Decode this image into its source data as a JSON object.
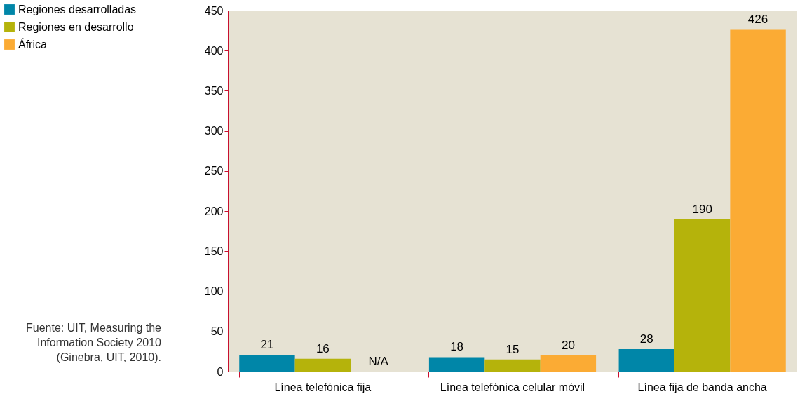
{
  "chart_data": {
    "type": "bar",
    "categories": [
      "Línea telefónica fija",
      "Línea telefónica celular móvil",
      "Línea fija de banda ancha"
    ],
    "series": [
      {
        "name": "Regiones desarrolladas",
        "color": "#0086a8",
        "values": [
          21,
          18,
          28
        ],
        "value_labels": [
          "21",
          "18",
          "28"
        ]
      },
      {
        "name": "Regiones en desarrollo",
        "color": "#b5b30b",
        "values": [
          16,
          15,
          190
        ],
        "value_labels": [
          "16",
          "15",
          "190"
        ]
      },
      {
        "name": "África",
        "color": "#fbab34",
        "values": [
          null,
          20,
          426
        ],
        "value_labels": [
          "N/A",
          "20",
          "426"
        ]
      }
    ],
    "ylim": [
      0,
      450
    ],
    "yticks": [
      0,
      50,
      100,
      150,
      200,
      250,
      300,
      350,
      400,
      450
    ],
    "grid": false,
    "legend": "top left",
    "annotations": [
      "Fuente: UIT, Measuring the\nInformation Society 2010\n(Ginebra, UIT, 2010)."
    ]
  }
}
